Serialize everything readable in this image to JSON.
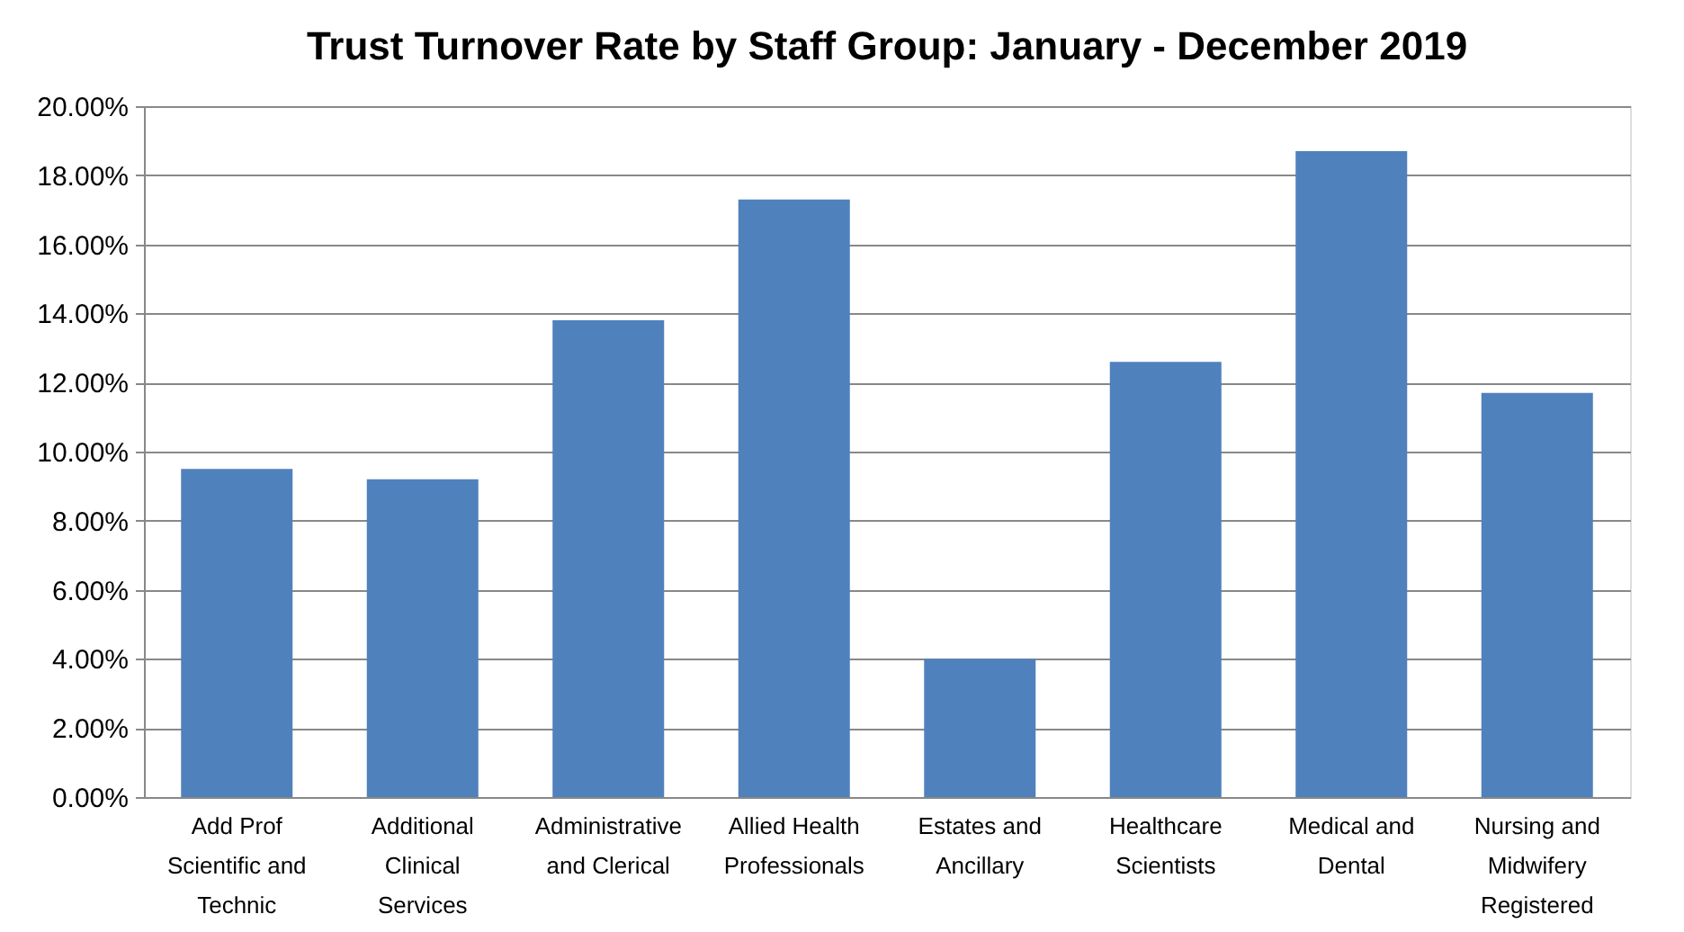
{
  "chart_data": {
    "type": "bar",
    "title": "Trust Turnover Rate by Staff Group: January - December 2019",
    "categories": [
      "Add Prof Scientific and Technic",
      "Additional Clinical Services",
      "Administrative and Clerical",
      "Allied Health Professionals",
      "Estates and Ancillary",
      "Healthcare Scientists",
      "Medical and Dental",
      "Nursing and Midwifery Registered"
    ],
    "values": [
      9.5,
      9.2,
      13.8,
      17.3,
      4.0,
      12.6,
      18.7,
      11.7
    ],
    "color": "#4f81bd",
    "ylim": [
      0,
      20
    ],
    "yticks": [
      {
        "value": 0,
        "label": "0.00%"
      },
      {
        "value": 2,
        "label": "2.00%"
      },
      {
        "value": 4,
        "label": "4.00%"
      },
      {
        "value": 6,
        "label": "6.00%"
      },
      {
        "value": 8,
        "label": "8.00%"
      },
      {
        "value": 10,
        "label": "10.00%"
      },
      {
        "value": 12,
        "label": "12.00%"
      },
      {
        "value": 14,
        "label": "14.00%"
      },
      {
        "value": 16,
        "label": "16.00%"
      },
      {
        "value": 18,
        "label": "18.00%"
      },
      {
        "value": 20,
        "label": "20.00%"
      }
    ],
    "grid": "y"
  }
}
